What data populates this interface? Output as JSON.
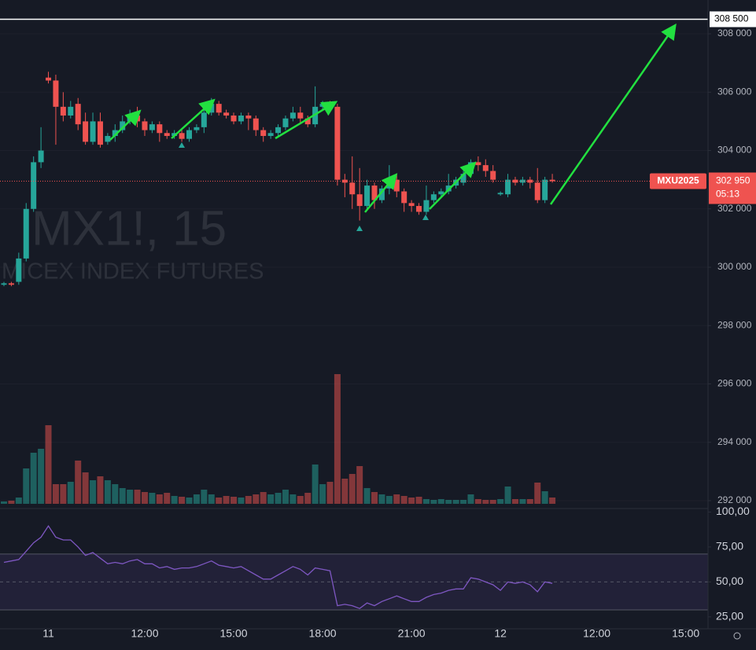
{
  "chart_data": [
    {
      "type": "candlestick",
      "watermark": "MX1!, 15",
      "subtitle": "MICEX INDEX FUTURES",
      "categories": [
        null,
        null,
        null,
        null,
        null,
        null,
        "11",
        null,
        null,
        null,
        null,
        null,
        null,
        null,
        null,
        null,
        null,
        null,
        null,
        "12:00",
        null,
        null,
        null,
        null,
        null,
        null,
        null,
        null,
        null,
        null,
        null,
        "15:00",
        null,
        null,
        null,
        null,
        null,
        null,
        null,
        null,
        null,
        null,
        null,
        "18:00",
        null,
        null,
        null,
        null,
        null,
        null,
        null,
        null,
        null,
        null,
        null,
        "21:00",
        null,
        null,
        null,
        null,
        null,
        null,
        null,
        null,
        null,
        null,
        null,
        "12",
        null,
        null,
        null,
        null,
        null,
        null,
        null,
        null,
        null,
        null,
        null,
        null,
        "12:00",
        null,
        null,
        null,
        null,
        null,
        null,
        null,
        null,
        null,
        null,
        null,
        "15:00"
      ],
      "open": [
        299400,
        299450,
        299500,
        300300,
        302000,
        303600,
        306500,
        306400,
        305500,
        305200,
        305600,
        305000,
        304300,
        305000,
        304300,
        304500,
        304700,
        305000,
        305200,
        305000,
        304700,
        304900,
        304600,
        304500,
        304600,
        304400,
        304700,
        304800,
        305300,
        305600,
        305300,
        305200,
        305000,
        305200,
        305100,
        304700,
        304500,
        304600,
        304800,
        305100,
        305300,
        305100,
        304900,
        305500,
        305600,
        305500,
        303000,
        302900,
        302500,
        302100,
        302800,
        302300,
        302700,
        303000,
        302600,
        302200,
        302100,
        301900,
        302300,
        302500,
        302600,
        302800,
        302900,
        303200,
        303600,
        303500,
        303300,
        302500,
        302500,
        303000,
        302900,
        303000,
        302900,
        302300,
        303000,
        null,
        null,
        null,
        null,
        null,
        null,
        null,
        null,
        null,
        null,
        null,
        null,
        null,
        null,
        null,
        null,
        null,
        null
      ],
      "high": [
        299500,
        299500,
        300500,
        302200,
        303800,
        304800,
        306700,
        306600,
        306000,
        305700,
        305800,
        305300,
        305300,
        305300,
        304600,
        304900,
        305200,
        305400,
        305500,
        305100,
        305000,
        305000,
        304700,
        304700,
        304700,
        304800,
        304900,
        305400,
        305800,
        305700,
        305400,
        305300,
        305300,
        305300,
        305200,
        304800,
        304700,
        304900,
        305200,
        305500,
        305500,
        305200,
        306200,
        305700,
        305700,
        305600,
        303200,
        303800,
        303400,
        303000,
        302900,
        302800,
        303500,
        303200,
        302700,
        302300,
        302200,
        302800,
        302600,
        302700,
        303200,
        303100,
        303300,
        303700,
        303800,
        303700,
        303500,
        302600,
        303200,
        303100,
        303100,
        303100,
        303400,
        303100,
        303200,
        null,
        null,
        null,
        null,
        null,
        null,
        null,
        null,
        null,
        null,
        null,
        null,
        null,
        null,
        null,
        null,
        null,
        null
      ],
      "low": [
        299350,
        299350,
        299400,
        300200,
        301900,
        303400,
        306300,
        304200,
        305000,
        305100,
        304700,
        304200,
        304200,
        304100,
        304200,
        304300,
        304600,
        304900,
        304800,
        304500,
        304600,
        304300,
        304400,
        304400,
        304300,
        304300,
        304600,
        304600,
        305200,
        305200,
        305100,
        304900,
        304900,
        304700,
        304500,
        304300,
        304400,
        304500,
        304700,
        305000,
        304900,
        304800,
        304800,
        305400,
        305400,
        302800,
        302400,
        302000,
        301600,
        302000,
        302000,
        302200,
        302500,
        302400,
        301900,
        301900,
        301800,
        301800,
        302200,
        302400,
        302500,
        302700,
        302800,
        303100,
        303300,
        303100,
        302900,
        302450,
        302400,
        302800,
        302800,
        302700,
        302200,
        302200,
        302900,
        null,
        null,
        null,
        null,
        null,
        null,
        null,
        null,
        null,
        null,
        null,
        null,
        null,
        null,
        null,
        null,
        null,
        null
      ],
      "close": [
        299450,
        299400,
        300300,
        302000,
        303600,
        304000,
        306400,
        305500,
        305200,
        305500,
        304900,
        304300,
        305000,
        304200,
        304500,
        304700,
        305000,
        305200,
        305000,
        304700,
        304900,
        304600,
        304500,
        304600,
        304400,
        304700,
        304800,
        305300,
        305600,
        305300,
        305200,
        305000,
        305200,
        305100,
        304700,
        304500,
        304600,
        304800,
        305100,
        305300,
        305100,
        304900,
        305500,
        305600,
        305500,
        303000,
        302900,
        302500,
        302100,
        302800,
        302300,
        302700,
        303000,
        302600,
        302200,
        302100,
        301900,
        302300,
        302500,
        302600,
        302800,
        303000,
        303200,
        303600,
        303500,
        303300,
        303000,
        302550,
        303000,
        302900,
        303000,
        302900,
        302300,
        303000,
        302950,
        null,
        null,
        null,
        null,
        null,
        null,
        null,
        null,
        null,
        null,
        null,
        null,
        null,
        null,
        null,
        null,
        null,
        null
      ],
      "volume": [
        3,
        4,
        8,
        45,
        65,
        70,
        100,
        25,
        25,
        28,
        55,
        40,
        30,
        35,
        30,
        25,
        20,
        18,
        18,
        15,
        14,
        12,
        14,
        10,
        9,
        8,
        12,
        18,
        12,
        8,
        10,
        9,
        8,
        10,
        12,
        15,
        12,
        14,
        18,
        12,
        10,
        14,
        50,
        25,
        28,
        165,
        32,
        38,
        48,
        20,
        15,
        12,
        10,
        12,
        10,
        8,
        9,
        6,
        5,
        6,
        5,
        5,
        5,
        12,
        6,
        5,
        5,
        6,
        22,
        6,
        6,
        6,
        27,
        16,
        8,
        null,
        null,
        null,
        null,
        null,
        null,
        null,
        null,
        null,
        null,
        null,
        null,
        null,
        null,
        null,
        null,
        null,
        null
      ],
      "up_color": "#26a69a",
      "down_color": "#ef5350",
      "ylim": [
        291730,
        309160
      ],
      "yticks": [
        {
          "value": 308000,
          "label": "308 000"
        },
        {
          "value": 306000,
          "label": "306 000"
        },
        {
          "value": 304000,
          "label": "304 000"
        },
        {
          "value": 302000,
          "label": "302 000"
        },
        {
          "value": 300000,
          "label": "300 000"
        },
        {
          "value": 298000,
          "label": "298 000"
        },
        {
          "value": 296000,
          "label": "296 000"
        },
        {
          "value": 294000,
          "label": "294 000"
        },
        {
          "value": 292000,
          "label": "292 000"
        }
      ],
      "level": {
        "value": 308500,
        "label": "308 500"
      },
      "last_price": {
        "symbol": "MXU2025",
        "value": 302950,
        "label": "302 950",
        "countdown": "05:13"
      }
    },
    {
      "type": "line",
      "values": [
        64,
        65,
        66,
        72,
        78,
        82,
        90,
        82,
        80,
        80,
        75,
        69,
        71,
        67,
        63,
        64,
        63,
        65,
        66,
        63,
        63,
        60,
        61,
        59,
        60,
        60,
        61,
        63,
        65,
        62,
        61,
        60,
        61,
        58,
        55,
        52,
        52,
        55,
        58,
        61,
        59,
        55,
        60,
        59,
        58,
        33,
        34,
        33,
        31,
        35,
        33,
        36,
        38,
        40,
        38,
        36,
        36,
        39,
        41,
        42,
        44,
        45,
        45,
        53,
        52,
        50,
        48,
        44,
        50,
        49,
        50,
        48,
        43,
        50,
        49,
        null,
        null,
        null,
        null,
        null,
        null,
        null,
        null,
        null,
        null,
        null,
        null,
        null,
        null,
        null,
        null,
        null,
        null
      ],
      "color": "#7e57c2",
      "ylim": [
        16.5,
        102.5
      ],
      "yticks": [
        {
          "value": 100,
          "label": "100,00"
        },
        {
          "value": 75,
          "label": "75,00"
        },
        {
          "value": 50,
          "label": "50,00"
        },
        {
          "value": 25,
          "label": "25,00"
        }
      ],
      "band": [
        30,
        70
      ],
      "midline": 50
    }
  ]
}
